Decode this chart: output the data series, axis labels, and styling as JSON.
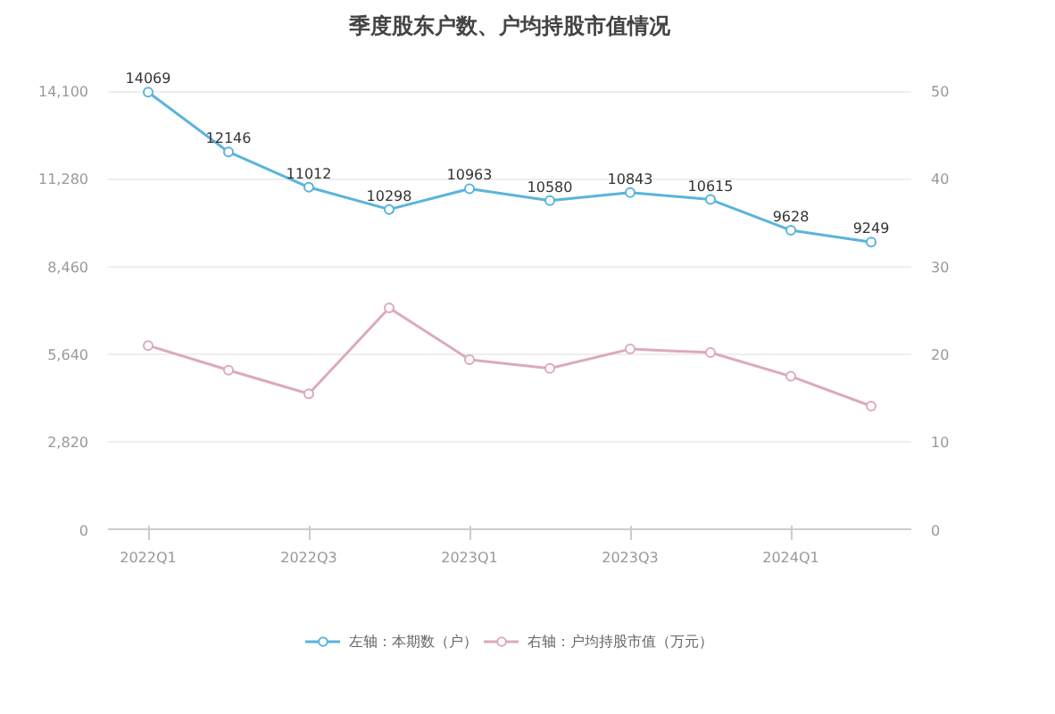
{
  "chart_data": {
    "type": "line",
    "title": "季度股东户数、户均持股市值情况",
    "categories": [
      "2022Q1",
      null,
      "2022Q3",
      null,
      "2023Q1",
      null,
      "2023Q3",
      null,
      "2024Q1",
      null
    ],
    "series": [
      {
        "name": "左轴：本期数（户）",
        "color": "#5ab4dc",
        "values": [
          14069,
          12146,
          11012,
          10298,
          10963,
          10580,
          10843,
          10615,
          9628,
          9249
        ],
        "value_labels": [
          "14069",
          "12146",
          "11012",
          "10298",
          "10963",
          "10580",
          "10843",
          "10615",
          "9628",
          "9249"
        ]
      },
      {
        "name": "右轴：户均持股市值（万元）",
        "color": "#dcaabb",
        "axis": "y2",
        "values": [
          21.0,
          18.2,
          15.5,
          25.3,
          19.4,
          18.4,
          20.6,
          20.2,
          17.5,
          14.1
        ]
      }
    ],
    "ylim": [
      0,
      14100
    ],
    "yticks": [
      0,
      {
        "value": 2820,
        "label": "2,820"
      },
      {
        "value": 5640,
        "label": "5,640"
      },
      {
        "value": 8460,
        "label": "8,460"
      },
      {
        "value": 11280,
        "label": "11,280"
      },
      {
        "value": 14100,
        "label": "14,100"
      }
    ],
    "y2lim": [
      0,
      50
    ],
    "y2ticks": [
      0,
      10,
      20,
      30,
      40,
      50
    ],
    "grid": "y",
    "legend": "bottom",
    "marker": "circle",
    "line_style": "solid"
  }
}
